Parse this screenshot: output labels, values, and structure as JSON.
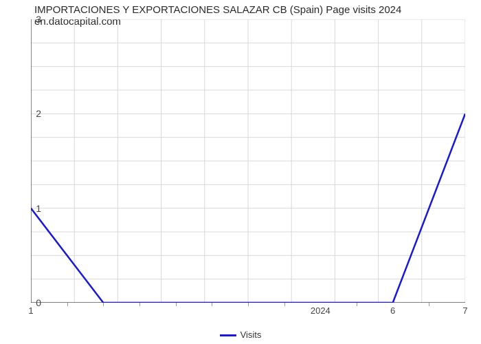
{
  "title": "IMPORTACIONES Y EXPORTACIONES SALAZAR CB (Spain) Page visits 2024 en.datocapital.com",
  "chart": {
    "type": "line",
    "x_values": [
      1,
      2,
      3,
      4,
      5,
      6,
      7
    ],
    "y_values": [
      1,
      0,
      0,
      0,
      0,
      0,
      2
    ],
    "xlim": [
      1,
      7
    ],
    "ylim": [
      0,
      3
    ],
    "ytick_positions": [
      0,
      1,
      2,
      3
    ],
    "ytick_labels": [
      "0",
      "1",
      "2",
      "3"
    ],
    "xtick_positions": [
      1,
      5,
      6,
      7
    ],
    "xtick_labels": [
      "1",
      "2024",
      "6",
      "7"
    ],
    "minor_xtick_positions": [
      1.5,
      2,
      2.5,
      3,
      3.5,
      4,
      4.5,
      5.5,
      6.5
    ],
    "line_color": "#1818d8",
    "line_width": 2.5,
    "background_color": "#ffffff",
    "grid_color": "#d8d8d8",
    "grid_width": 1,
    "axis_color": "#333333",
    "title_color": "#2a2a2a",
    "title_fontsize": 15
  },
  "legend": {
    "label": "Visits",
    "swatch_color": "#1818d8"
  }
}
